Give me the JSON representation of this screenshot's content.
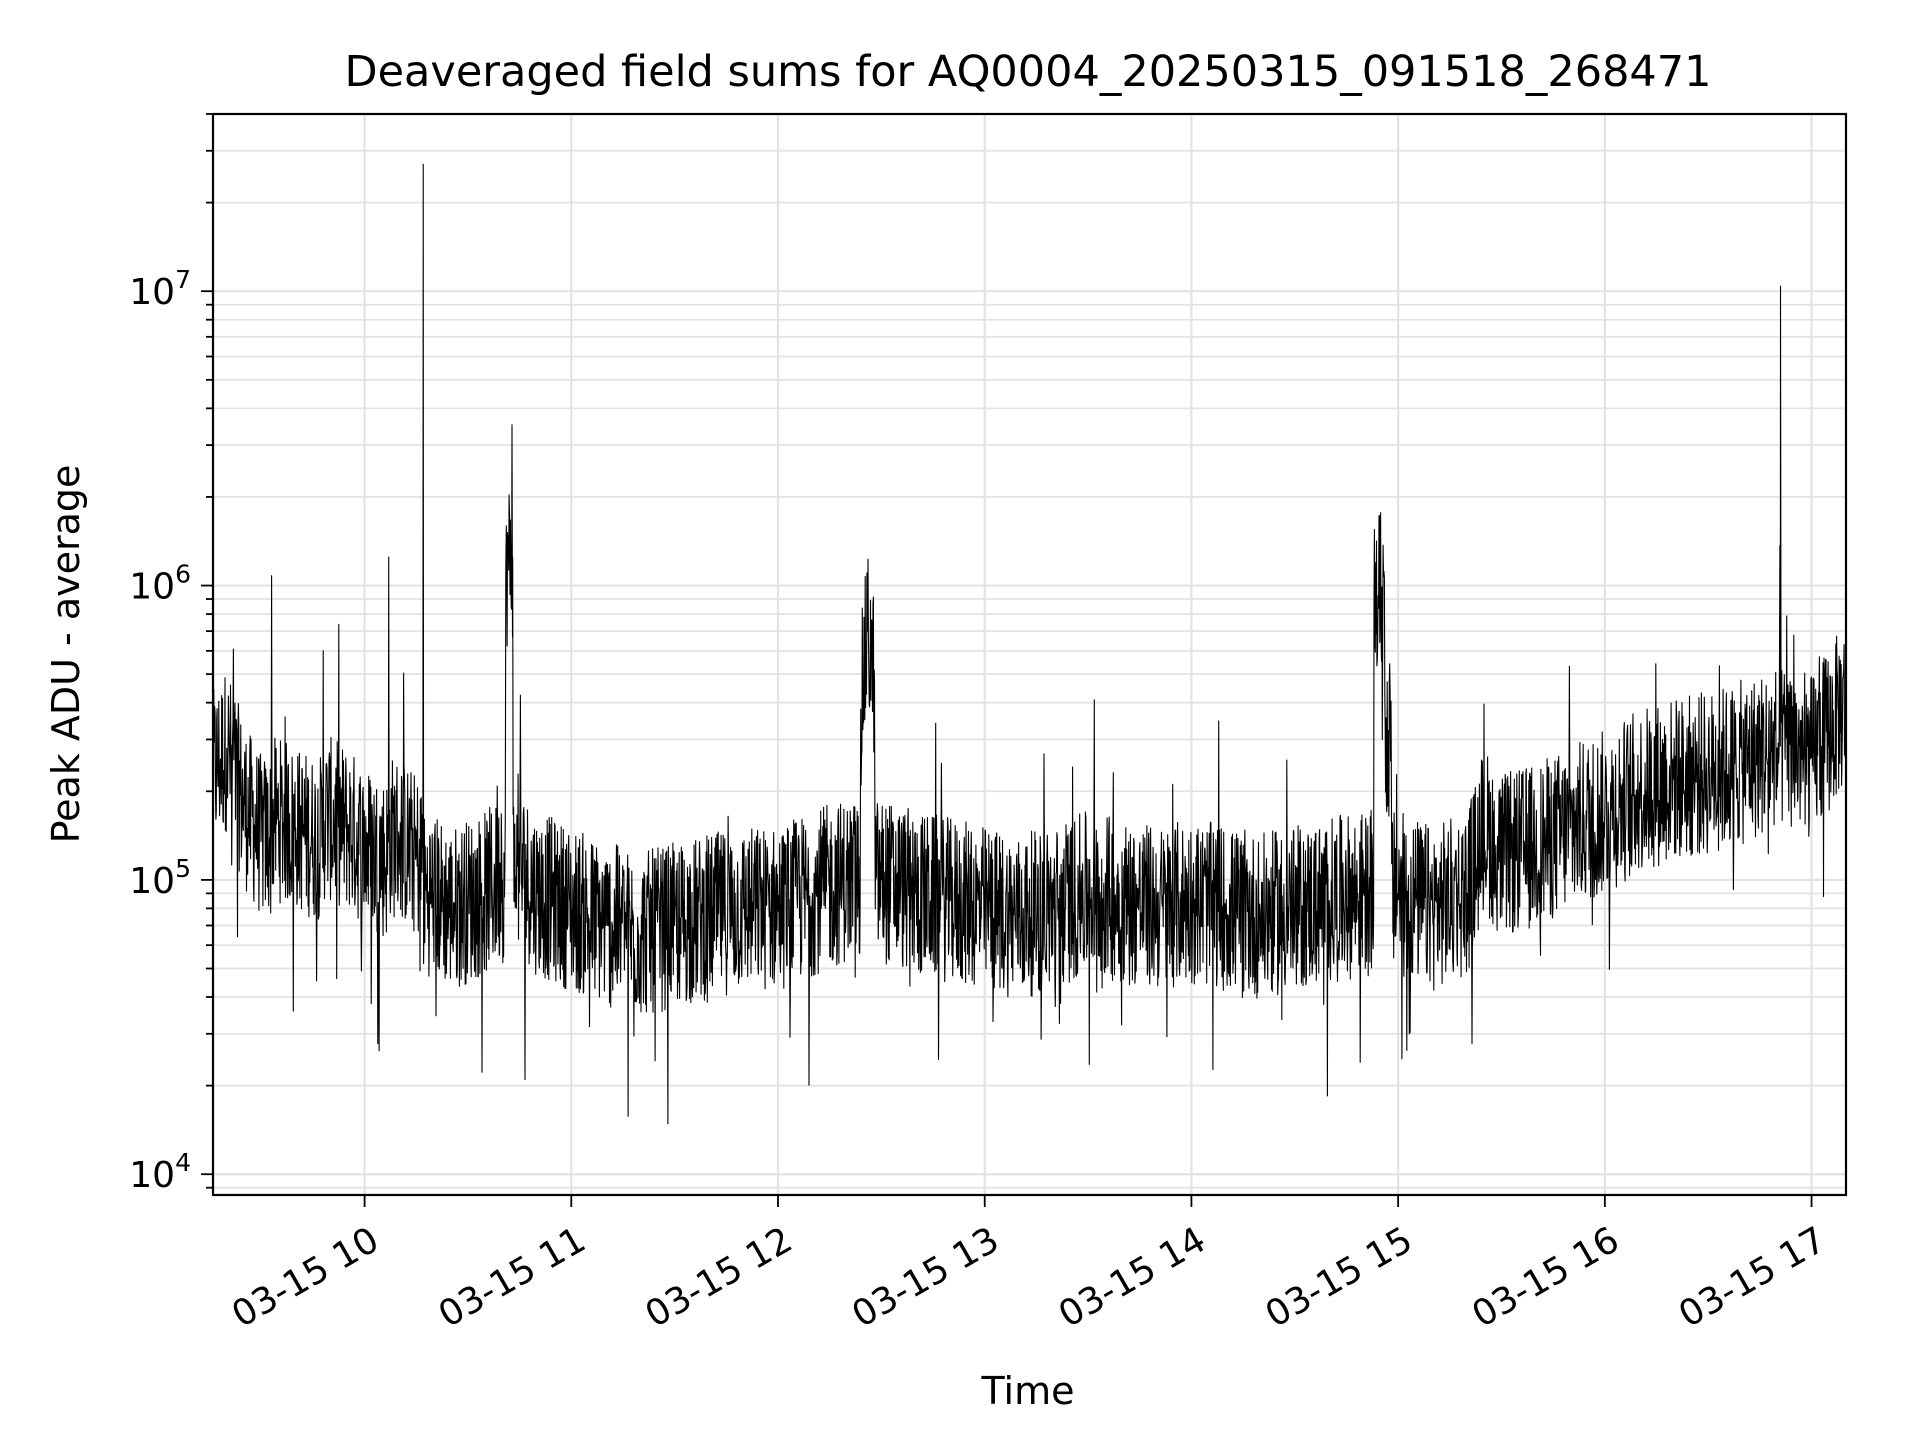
{
  "chart_data": {
    "type": "line",
    "title": "Deaveraged field sums for AQ0004_20250315_091518_268471",
    "xlabel": "Time",
    "ylabel": "Peak ADU - average",
    "yscale": "log",
    "ylim": [
      8500,
      40000000
    ],
    "xlim": [
      "2025-03-15 09:16",
      "2025-03-15 17:10"
    ],
    "grid": true,
    "line_color": "#000000",
    "x_ticks": [
      {
        "value": "2025-03-15 10:00",
        "label": "03-15 10"
      },
      {
        "value": "2025-03-15 11:00",
        "label": "03-15 11"
      },
      {
        "value": "2025-03-15 12:00",
        "label": "03-15 12"
      },
      {
        "value": "2025-03-15 13:00",
        "label": "03-15 13"
      },
      {
        "value": "2025-03-15 14:00",
        "label": "03-15 14"
      },
      {
        "value": "2025-03-15 15:00",
        "label": "03-15 15"
      },
      {
        "value": "2025-03-15 16:00",
        "label": "03-15 16"
      },
      {
        "value": "2025-03-15 17:00",
        "label": "03-15 17"
      }
    ],
    "y_ticks": [
      {
        "value": 10000,
        "base": "10",
        "exp": "4"
      },
      {
        "value": 100000,
        "base": "10",
        "exp": "5"
      },
      {
        "value": 1000000,
        "base": "10",
        "exp": "6"
      },
      {
        "value": 10000000,
        "base": "10",
        "exp": "7"
      }
    ],
    "series": [
      {
        "color": "#000000",
        "x": [
          "2025-03-15 09:16",
          "2025-03-15 09:20",
          "2025-03-15 09:25",
          "2025-03-15 09:30",
          "2025-03-15 09:33",
          "2025-03-15 09:35",
          "2025-03-15 09:40",
          "2025-03-15 09:45",
          "2025-03-15 09:48",
          "2025-03-15 09:50",
          "2025-03-15 09:55",
          "2025-03-15 10:00",
          "2025-03-15 10:05",
          "2025-03-15 10:07",
          "2025-03-15 10:10",
          "2025-03-15 10:15",
          "2025-03-15 10:17",
          "2025-03-15 10:20",
          "2025-03-15 10:25",
          "2025-03-15 10:30",
          "2025-03-15 10:35",
          "2025-03-15 10:40",
          "2025-03-15 10:41",
          "2025-03-15 10:43",
          "2025-03-15 10:45",
          "2025-03-15 10:50",
          "2025-03-15 11:00",
          "2025-03-15 11:10",
          "2025-03-15 11:20",
          "2025-03-15 11:30",
          "2025-03-15 11:40",
          "2025-03-15 11:50",
          "2025-03-15 12:00",
          "2025-03-15 12:10",
          "2025-03-15 12:20",
          "2025-03-15 12:24",
          "2025-03-15 12:26",
          "2025-03-15 12:28",
          "2025-03-15 12:30",
          "2025-03-15 12:40",
          "2025-03-15 12:50",
          "2025-03-15 13:00",
          "2025-03-15 13:10",
          "2025-03-15 13:20",
          "2025-03-15 13:30",
          "2025-03-15 13:40",
          "2025-03-15 13:50",
          "2025-03-15 14:00",
          "2025-03-15 14:10",
          "2025-03-15 14:20",
          "2025-03-15 14:30",
          "2025-03-15 14:40",
          "2025-03-15 14:50",
          "2025-03-15 14:53",
          "2025-03-15 14:56",
          "2025-03-15 14:58",
          "2025-03-15 15:00",
          "2025-03-15 15:10",
          "2025-03-15 15:20",
          "2025-03-15 15:25",
          "2025-03-15 15:30",
          "2025-03-15 15:40",
          "2025-03-15 15:50",
          "2025-03-15 16:00",
          "2025-03-15 16:10",
          "2025-03-15 16:20",
          "2025-03-15 16:30",
          "2025-03-15 16:40",
          "2025-03-15 16:49",
          "2025-03-15 16:51",
          "2025-03-15 16:55",
          "2025-03-15 17:00",
          "2025-03-15 17:05",
          "2025-03-15 17:10"
        ],
        "y": [
          230000,
          280000,
          180000,
          140000,
          1080000,
          160000,
          150000,
          140000,
          600000,
          160000,
          150000,
          130000,
          120000,
          1250000,
          140000,
          120000,
          27000000,
          90000,
          80000,
          85000,
          90000,
          100000,
          1150000,
          1250000,
          110000,
          90000,
          80000,
          70000,
          65000,
          70000,
          75000,
          80000,
          80000,
          90000,
          100000,
          380000,
          700000,
          480000,
          100000,
          90000,
          85000,
          80000,
          75000,
          80000,
          90000,
          85000,
          80000,
          85000,
          80000,
          75000,
          80000,
          85000,
          90000,
          840000,
          1060000,
          300000,
          90000,
          80000,
          90000,
          150000,
          120000,
          130000,
          150000,
          170000,
          200000,
          220000,
          230000,
          250000,
          280000,
          10400000,
          280000,
          260000,
          320000,
          400000
        ]
      }
    ]
  }
}
